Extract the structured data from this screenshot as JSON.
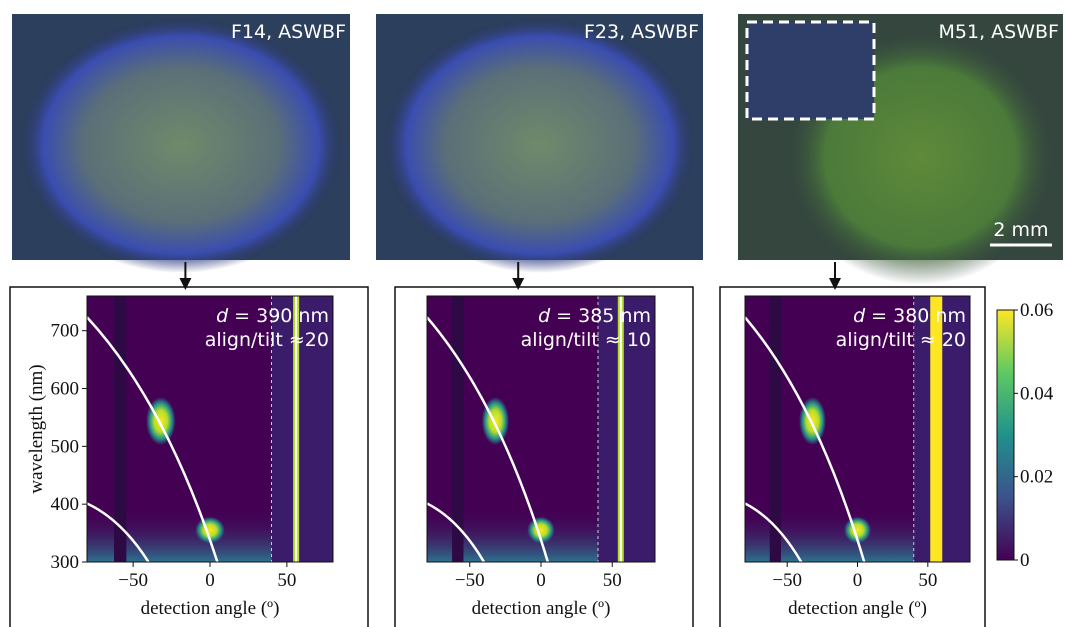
{
  "panels": [
    {
      "photo_label": "F14, ASWBF",
      "d_symbol": "d",
      "d_text": "= 390 nm",
      "tilt_text": "align/tilt ≈20",
      "x_axis_label": "detection angle (º)"
    },
    {
      "photo_label": "F23, ASWBF",
      "d_symbol": "d",
      "d_text": "= 385 nm",
      "tilt_text": "align/tilt ≈ 10",
      "x_axis_label": "detection angle (º)"
    },
    {
      "photo_label": "M51, ASWBF",
      "d_symbol": "d",
      "d_text": "= 380 nm",
      "tilt_text": "align/tilt ≈ 20",
      "x_axis_label": "detection angle (º)"
    }
  ],
  "scale_bar": "2 mm",
  "y_axis_label": "wavelength (nm)",
  "xlim": [
    -80,
    80
  ],
  "xticks": [
    {
      "value": -50,
      "label": "−50"
    },
    0,
    50
  ],
  "ylim": [
    300,
    760
  ],
  "yticks": [
    300,
    400,
    500,
    600,
    700
  ],
  "colorbar": {
    "lim": [
      0,
      0.06
    ],
    "ticks": [
      0,
      0.02,
      0.04,
      0.06
    ]
  }
}
